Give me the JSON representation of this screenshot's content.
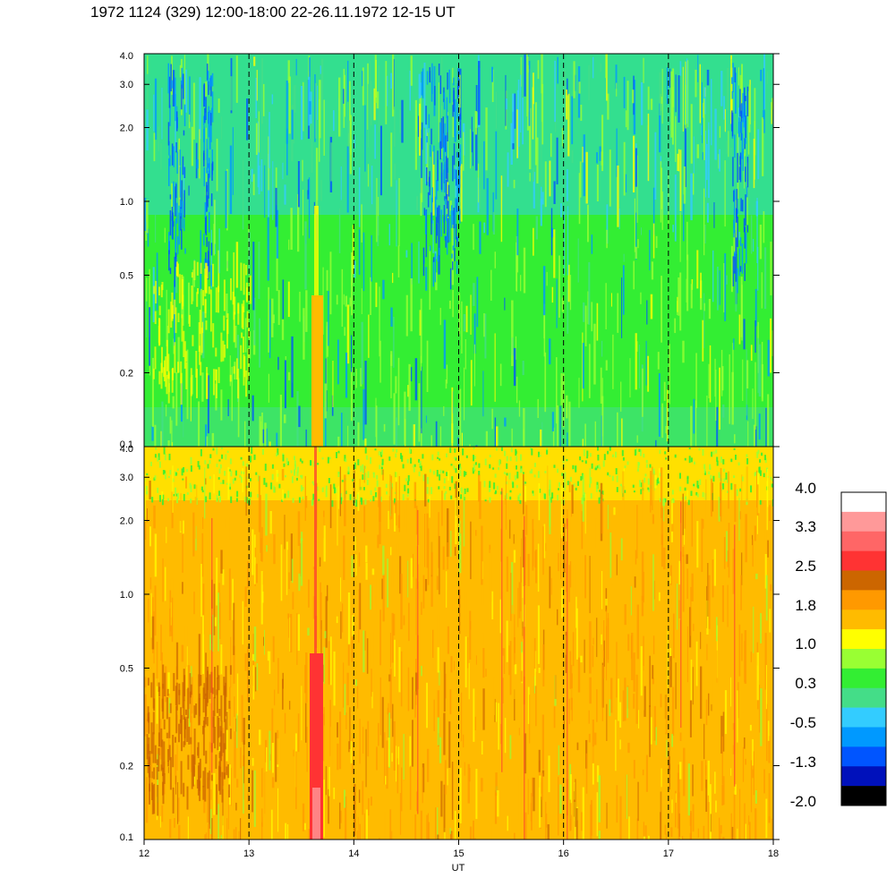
{
  "title": "1972 1124 (329) 12:00-18:00 22-26.11.1972  12-15 UT",
  "chart_data": [
    {
      "type": "heatmap",
      "panel": "upper",
      "x_range": [
        12,
        18
      ],
      "y_scale": "log",
      "y_range": [
        0.1,
        4.0
      ],
      "y_ticks": [
        "0.1",
        "0.2",
        "0.5",
        "1.0",
        "2.0",
        "3.0",
        "4.0"
      ],
      "dominant_levels": [
        "0.3",
        "-0.5",
        "1.0"
      ],
      "vertical_reference_lines_at": [
        13,
        14,
        15,
        16,
        17
      ]
    },
    {
      "type": "heatmap",
      "panel": "lower",
      "x_range": [
        12,
        18
      ],
      "y_scale": "log",
      "y_range": [
        0.1,
        4.0
      ],
      "y_ticks": [
        "0.1",
        "0.2",
        "0.5",
        "1.0",
        "2.0",
        "3.0",
        "4.0"
      ],
      "x_ticks": [
        "12",
        "13",
        "14",
        "15",
        "16",
        "17",
        "18"
      ],
      "xlabel": "UT",
      "dominant_levels": [
        "1.8",
        "1.0",
        "2.5"
      ],
      "vertical_reference_lines_at": [
        13,
        14,
        15,
        16,
        17
      ]
    }
  ],
  "colorbar": {
    "labels": [
      "4.0",
      "3.3",
      "2.5",
      "1.8",
      "1.0",
      "0.3",
      "-0.5",
      "-1.3",
      "-2.0"
    ],
    "colors": [
      "#ffffff",
      "#ff9999",
      "#ff6666",
      "#ff3333",
      "#cc6600",
      "#ff9900",
      "#ffbb00",
      "#ffff00",
      "#99ff33",
      "#33ee33",
      "#44dd88",
      "#33ccff",
      "#0099ff",
      "#0055ff",
      "#0011bb",
      "#000000"
    ]
  }
}
